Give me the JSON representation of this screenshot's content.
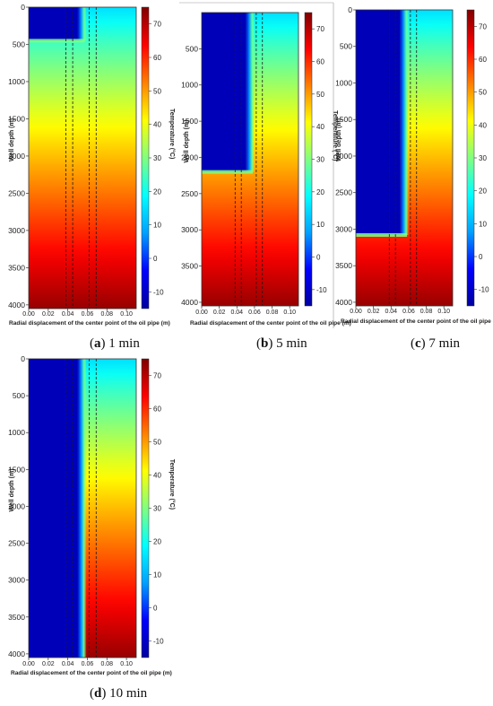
{
  "chart_data": [
    {
      "type": "heatmap",
      "caption_letter": "a",
      "caption_time": "1 min",
      "title": "",
      "xlabel": "Radial displacement of the center point of the oil pipe  (m)",
      "ylabel": "Well depth (m)",
      "colorbar_label": "Temperature (°C)",
      "x_ticks": [
        "0.00",
        "0.02",
        "0.04",
        "0.06",
        "0.08",
        "0.10"
      ],
      "y_ticks": [
        "0",
        "500",
        "1000",
        "1500",
        "2000",
        "2500",
        "3000",
        "3500",
        "4000"
      ],
      "colorbar_ticks": [
        "70",
        "60",
        "50",
        "40",
        "30",
        "20",
        "10",
        "0",
        "-10"
      ],
      "xlim": [
        0,
        0.11
      ],
      "ylim": [
        4050,
        0
      ],
      "clim": [
        -15,
        75
      ],
      "dashed_lines_x": [
        0.038,
        0.045,
        0.062,
        0.069
      ],
      "cold_front_depth": 450,
      "cold_radius": 0.05,
      "surface_temperature": 15,
      "bottom_temperature": 73
    },
    {
      "type": "heatmap",
      "caption_letter": "b",
      "caption_time": "5 min",
      "title": "",
      "xlabel": "Radial displacement of the center point of the oil pipe  (m)",
      "ylabel": "Well depth (m)",
      "colorbar_label": "Temperature (°C)",
      "x_ticks": [
        "0.00",
        "0.02",
        "0.04",
        "0.06",
        "0.08",
        "0.10"
      ],
      "y_ticks": [
        "500",
        "1000",
        "1500",
        "2000",
        "2500",
        "3000",
        "3500",
        "4000"
      ],
      "colorbar_ticks": [
        "70",
        "60",
        "50",
        "40",
        "30",
        "20",
        "10",
        "0",
        "-10"
      ],
      "xlim": [
        0,
        0.11
      ],
      "ylim": [
        4050,
        0
      ],
      "clim": [
        -15,
        75
      ],
      "dashed_lines_x": [
        0.038,
        0.045,
        0.062,
        0.069
      ],
      "cold_front_depth": 2200,
      "cold_radius": 0.05,
      "surface_temperature": 15,
      "bottom_temperature": 73
    },
    {
      "type": "heatmap",
      "caption_letter": "c",
      "caption_time": "7 min",
      "title": "",
      "xlabel": "Radial displacement of the center point of the oil pipe  (m)",
      "ylabel": "Well depth (m)",
      "colorbar_label": "Temperature (°C)",
      "x_ticks": [
        "0.00",
        "0.02",
        "0.04",
        "0.06",
        "0.08",
        "0.10"
      ],
      "y_ticks": [
        "0",
        "500",
        "1000",
        "1500",
        "2000",
        "2500",
        "3000",
        "3500",
        "4000"
      ],
      "colorbar_ticks": [
        "70",
        "60",
        "50",
        "40",
        "30",
        "20",
        "10",
        "0",
        "-10"
      ],
      "xlim": [
        0,
        0.11
      ],
      "ylim": [
        4050,
        0
      ],
      "clim": [
        -15,
        75
      ],
      "dashed_lines_x": [
        0.038,
        0.045,
        0.062,
        0.069
      ],
      "cold_front_depth": 3080,
      "cold_radius": 0.05,
      "surface_temperature": 15,
      "bottom_temperature": 73
    },
    {
      "type": "heatmap",
      "caption_letter": "d",
      "caption_time": "10 min",
      "title": "",
      "xlabel": "Radial displacement of the center point of the oil pipe  (m)",
      "ylabel": "Well depth (m)",
      "colorbar_label": "Temperature (°C)",
      "x_ticks": [
        "0.00",
        "0.02",
        "0.04",
        "0.06",
        "0.08",
        "0.10"
      ],
      "y_ticks": [
        "0",
        "500",
        "1000",
        "1500",
        "2000",
        "2500",
        "3000",
        "3500",
        "4000"
      ],
      "colorbar_ticks": [
        "70",
        "60",
        "50",
        "40",
        "30",
        "20",
        "10",
        "0",
        "-10"
      ],
      "xlim": [
        0,
        0.11
      ],
      "ylim": [
        4050,
        0
      ],
      "clim": [
        -15,
        75
      ],
      "dashed_lines_x": [
        0.038,
        0.045,
        0.062,
        0.069
      ],
      "cold_front_depth": 4050,
      "cold_radius": 0.05,
      "surface_temperature": 15,
      "bottom_temperature": 73
    }
  ],
  "colormap": [
    "#0000a0",
    "#0000ff",
    "#00a0ff",
    "#00ffff",
    "#80ff80",
    "#ffff00",
    "#ff8000",
    "#ff0000",
    "#800000"
  ]
}
